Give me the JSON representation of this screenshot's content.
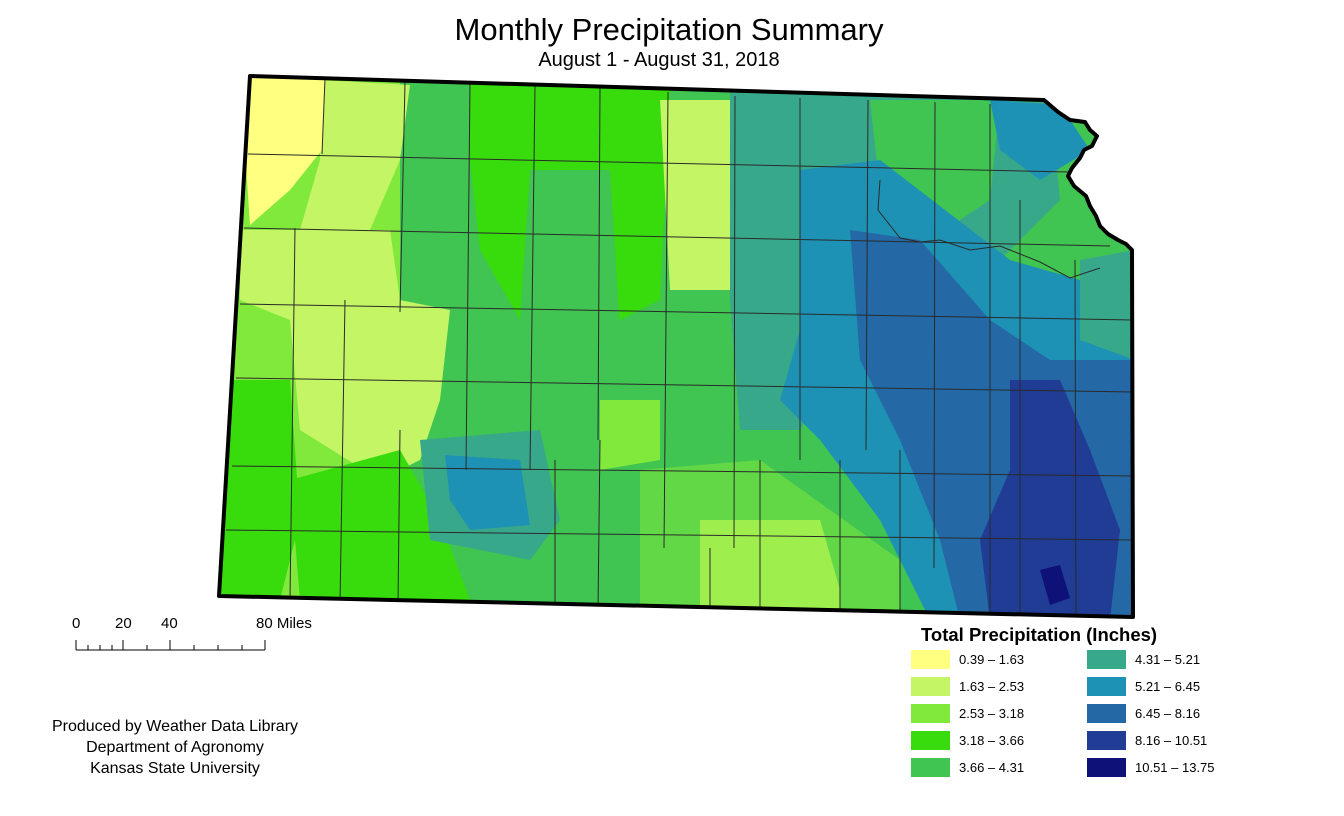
{
  "title": "Monthly Precipitation Summary",
  "subtitle": "August 1 - August 31, 2018",
  "legend": {
    "title": "Total Precipitation (Inches)",
    "classes": [
      {
        "label": "0.39 – 1.63",
        "color": "#ffff80"
      },
      {
        "label": "1.63 – 2.53",
        "color": "#c3f564"
      },
      {
        "label": "2.53 – 3.18",
        "color": "#80e93c"
      },
      {
        "label": "3.18 – 3.66",
        "color": "#38db0c"
      },
      {
        "label": "3.66 – 4.31",
        "color": "#40c452"
      },
      {
        "label": "4.31 – 5.21",
        "color": "#38a88a"
      },
      {
        "label": "5.21 – 6.45",
        "color": "#1e92b4"
      },
      {
        "label": "6.45 – 8.16",
        "color": "#2468a6"
      },
      {
        "label": "8.16 – 10.51",
        "color": "#203c94"
      },
      {
        "label": "10.51 – 13.75",
        "color": "#0d1178"
      }
    ]
  },
  "scale_bar": {
    "labels": [
      "0",
      "20",
      "40",
      "80 Miles"
    ]
  },
  "credit": {
    "line1": "Produced by Weather Data Library",
    "line2": "Department of Agronomy",
    "line3": "Kansas State University"
  }
}
